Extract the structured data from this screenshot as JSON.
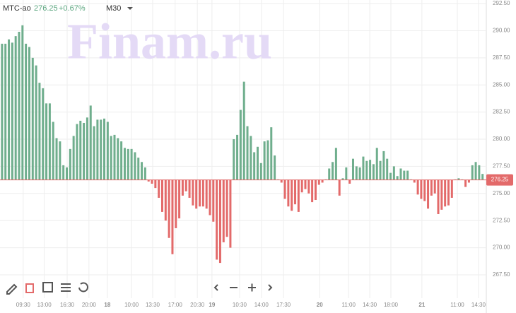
{
  "chart_data": {
    "type": "bar",
    "ticker": "МТС-ао",
    "last_price": 276.25,
    "change": "+0.67%",
    "interval": "M30",
    "watermark": "Finam.ru",
    "baseline": 276.25,
    "up_color": "#6fae8d",
    "down_color": "#e36a6a",
    "values": [
      288.8,
      288.8,
      289.2,
      288.9,
      289.5,
      289.9,
      290.5,
      288.8,
      288.5,
      287.5,
      286.8,
      285.2,
      284.7,
      283.3,
      283.3,
      281.6,
      280.1,
      279.8,
      277.6,
      277.4,
      279.1,
      280.3,
      281.4,
      281.7,
      281.5,
      282.0,
      283.1,
      281.2,
      281.8,
      281.8,
      281.9,
      281.6,
      280.3,
      280.4,
      280.1,
      279.8,
      279.2,
      279.1,
      279.1,
      278.8,
      278.3,
      277.9,
      277.4,
      276.1,
      275.9,
      275.5,
      274.6,
      273.3,
      272.5,
      270.9,
      269.4,
      271.8,
      272.7,
      274.8,
      275.2,
      274.6,
      273.9,
      273.6,
      273.8,
      273.8,
      273.6,
      273.0,
      272.4,
      268.9,
      268.6,
      270.5,
      271.0,
      270.0,
      280.0,
      280.4,
      282.7,
      285.3,
      281.2,
      280.3,
      278.8,
      279.3,
      277.8,
      279.8,
      279.9,
      281.1,
      278.5,
      276.3,
      276.0,
      274.5,
      273.8,
      273.4,
      274.0,
      273.3,
      275.1,
      275.4,
      275.0,
      274.2,
      274.4,
      275.8,
      276.0,
      276.3,
      277.3,
      277.9,
      279.2,
      274.8,
      276.4,
      277.4,
      275.9,
      278.2,
      277.5,
      277.4,
      278.4,
      278.0,
      278.1,
      277.7,
      279.2,
      278.0,
      278.9,
      278.2,
      276.9,
      277.5,
      276.6,
      277.3,
      277.1,
      277.1,
      276.3,
      276.0,
      274.9,
      274.5,
      274.3,
      273.6,
      274.8,
      275.0,
      273.1,
      273.5,
      273.8,
      273.9,
      274.6,
      276.3,
      276.4,
      276.3,
      275.6,
      276.0,
      277.6,
      277.9,
      277.6,
      276.8
    ],
    "xlim": [
      -0.6,
      142.1
    ],
    "xticks": [
      {
        "value": 6.2,
        "label": "09:30"
      },
      {
        "value": 12.4,
        "label": "13:00"
      },
      {
        "value": 19.1,
        "label": "16:30"
      },
      {
        "value": 25.5,
        "label": "20:00"
      },
      {
        "value": 30.9,
        "label": "18"
      },
      {
        "value": 38,
        "label": "10:00"
      },
      {
        "value": 44.2,
        "label": "13:30"
      },
      {
        "value": 50.8,
        "label": "17:00"
      },
      {
        "value": 57.3,
        "label": "20:30"
      },
      {
        "value": 61.6,
        "label": "19"
      },
      {
        "value": 69.7,
        "label": "10:30"
      },
      {
        "value": 76.1,
        "label": "14:00"
      },
      {
        "value": 82.6,
        "label": "17:30"
      },
      {
        "value": 93.2,
        "label": "20"
      },
      {
        "value": 101.7,
        "label": "11:00"
      },
      {
        "value": 107.9,
        "label": "14:30"
      },
      {
        "value": 114.1,
        "label": "18:00"
      },
      {
        "value": 123.2,
        "label": "21"
      },
      {
        "value": 133.6,
        "label": "11:00"
      },
      {
        "value": 139.8,
        "label": "14:30"
      }
    ],
    "ylim": [
      265.48,
      292.83
    ],
    "yticks": [
      {
        "value": 292.5,
        "label": "292.50"
      },
      {
        "value": 290,
        "label": "290.00"
      },
      {
        "value": 287.5,
        "label": "287.50"
      },
      {
        "value": 285,
        "label": "285.00"
      },
      {
        "value": 282.5,
        "label": "282.50"
      },
      {
        "value": 280,
        "label": "280.00"
      },
      {
        "value": 277.5,
        "label": "277.50"
      },
      {
        "value": 275,
        "label": "275.00"
      },
      {
        "value": 272.5,
        "label": "272.50"
      },
      {
        "value": 270,
        "label": "270.00"
      },
      {
        "value": 267.5,
        "label": "267.50"
      }
    ],
    "grid": true
  }
}
